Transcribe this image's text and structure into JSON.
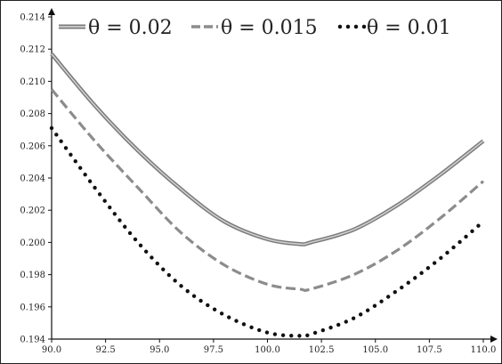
{
  "chart_data": {
    "type": "line",
    "title": "",
    "xlabel": "",
    "ylabel": "",
    "xlim": [
      90.0,
      110.0
    ],
    "ylim": [
      0.194,
      0.214
    ],
    "xticks": [
      "90.0",
      "92.5",
      "95.0",
      "97.5",
      "100.0",
      "102.5",
      "105.0",
      "107.5",
      "110.0"
    ],
    "yticks": [
      "0.194",
      "0.196",
      "0.198",
      "0.200",
      "0.202",
      "0.204",
      "0.206",
      "0.208",
      "0.210",
      "0.212",
      "0.214"
    ],
    "grid": false,
    "legend_position": "top",
    "x": [
      90,
      92,
      94,
      96,
      98,
      100,
      101.5,
      102,
      104,
      106,
      108,
      110
    ],
    "series": [
      {
        "name": "θ = 0.02",
        "style": "solid",
        "color": "#9a9a9a",
        "values": [
          0.2117,
          0.2085,
          0.2057,
          0.2033,
          0.2013,
          0.2002,
          0.1999,
          0.2,
          0.2008,
          0.2023,
          0.2042,
          0.2063
        ]
      },
      {
        "name": "θ = 0.015",
        "style": "dashed",
        "color": "#8c8c8c",
        "values": [
          0.2095,
          0.2063,
          0.2034,
          0.2006,
          0.1986,
          0.1974,
          0.1971,
          0.1971,
          0.198,
          0.1995,
          0.2015,
          0.2038
        ]
      },
      {
        "name": "θ = 0.01",
        "style": "dotted",
        "color": "#111111",
        "values": [
          0.2071,
          0.2034,
          0.2,
          0.1973,
          0.1955,
          0.1944,
          0.1942,
          0.1943,
          0.1953,
          0.197,
          0.199,
          0.2013
        ]
      }
    ]
  }
}
